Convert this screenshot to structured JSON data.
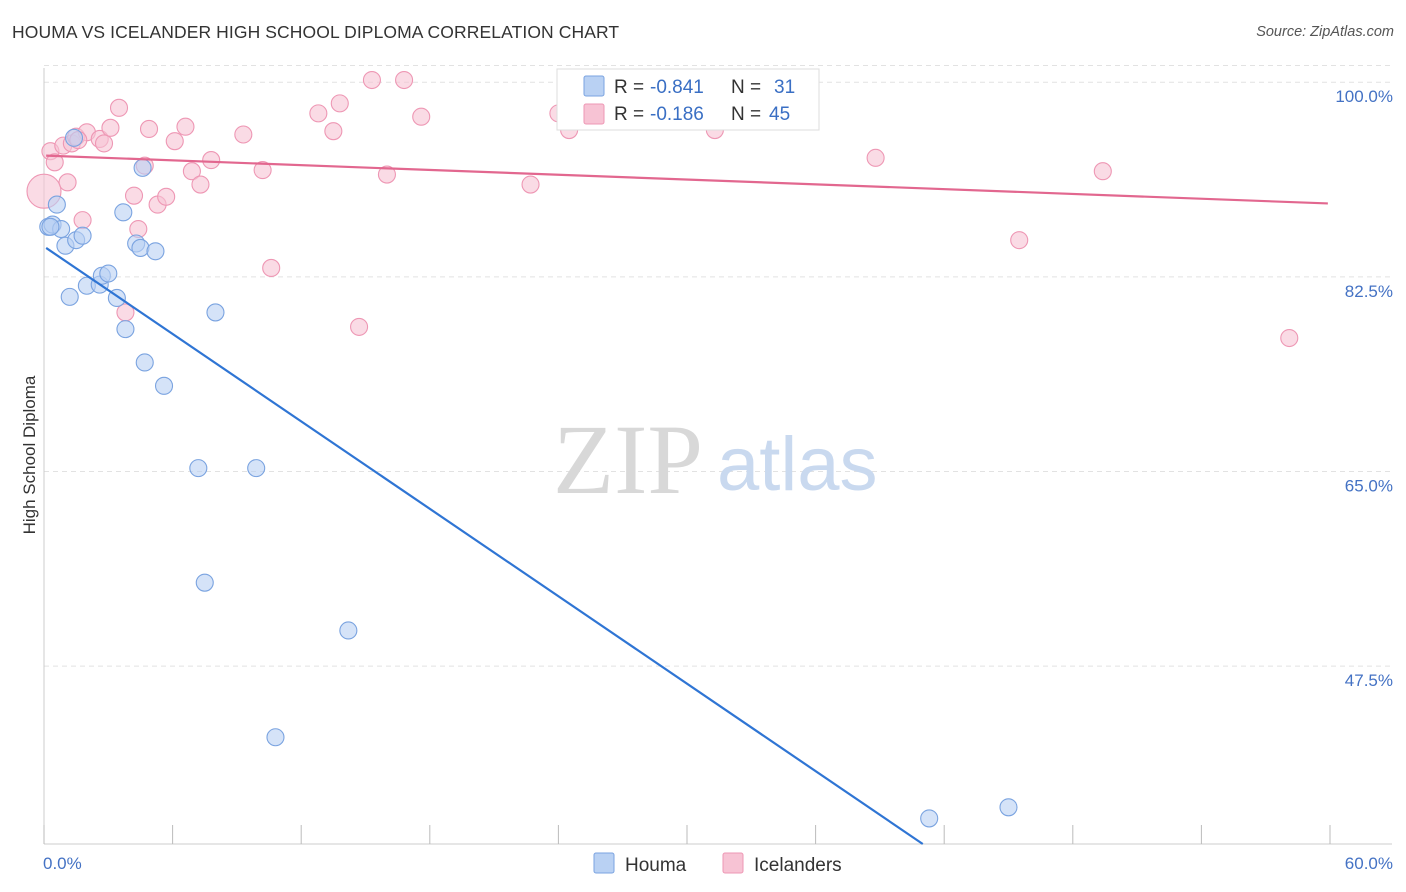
{
  "title": "HOUMA VS ICELANDER HIGH SCHOOL DIPLOMA CORRELATION CHART",
  "source": "Source: ZipAtlas.com",
  "watermark": {
    "zip": "ZIP",
    "atlas": "atlas"
  },
  "colors": {
    "houma_fill": "#b9d1f3",
    "houma_stroke": "#7aa3e0",
    "houma_line": "#2f75d4",
    "icel_fill": "#f7c3d4",
    "icel_stroke": "#ee97b4",
    "icel_line": "#e2678f",
    "tick_text": "#4472c4",
    "grid": "#e2e2e2"
  },
  "legend": {
    "r_label": "R =",
    "n_label": "N =",
    "rows": [
      {
        "series": "Houma",
        "r": "-0.841",
        "n": "31"
      },
      {
        "series": "Icelanders",
        "r": "-0.186",
        "n": "45"
      }
    ]
  },
  "chart_data": {
    "type": "scatter",
    "title": "HOUMA VS ICELANDER HIGH SCHOOL DIPLOMA CORRELATION CHART",
    "xlabel": "",
    "ylabel": "High School Diploma",
    "xlim": [
      0,
      60
    ],
    "ylim": [
      31.5,
      102
    ],
    "x_tick_labels": [
      "0.0%",
      "60.0%"
    ],
    "x_minor_ticks": [
      0,
      6,
      12,
      18,
      24,
      30,
      36,
      42,
      48,
      54,
      60
    ],
    "y_ticks": [
      100,
      82.5,
      65,
      47.5
    ],
    "y_tick_labels": [
      "100.0%",
      "82.5%",
      "65.0%",
      "47.5%"
    ],
    "grid": true,
    "legend_position": "top-center",
    "series": [
      {
        "name": "Houma",
        "points": [
          [
            0.2,
            87.0
          ],
          [
            0.4,
            87.2
          ],
          [
            0.6,
            89.0
          ],
          [
            0.8,
            86.8
          ],
          [
            1.0,
            85.3
          ],
          [
            1.2,
            80.7
          ],
          [
            1.4,
            95.0
          ],
          [
            1.5,
            85.8
          ],
          [
            1.8,
            86.2
          ],
          [
            2.0,
            81.7
          ],
          [
            2.6,
            81.8
          ],
          [
            2.7,
            82.6
          ],
          [
            3.0,
            82.8
          ],
          [
            3.4,
            80.6
          ],
          [
            3.7,
            88.3
          ],
          [
            3.8,
            77.8
          ],
          [
            4.3,
            85.5
          ],
          [
            4.5,
            85.1
          ],
          [
            4.6,
            92.3
          ],
          [
            4.7,
            74.8
          ],
          [
            5.2,
            84.8
          ],
          [
            5.6,
            72.7
          ],
          [
            7.2,
            65.3
          ],
          [
            7.5,
            55.0
          ],
          [
            8.0,
            79.3
          ],
          [
            9.9,
            65.3
          ],
          [
            10.8,
            41.1
          ],
          [
            14.2,
            50.7
          ],
          [
            41.3,
            33.8
          ],
          [
            45.0,
            34.8
          ],
          [
            0.3,
            87.0
          ]
        ],
        "trend_line": {
          "x": [
            0.1,
            41.0
          ],
          "y": [
            85.1,
            31.5
          ]
        },
        "r": -0.841,
        "n": 31
      },
      {
        "name": "Icelanders",
        "points": [
          [
            0.3,
            93.8
          ],
          [
            0.5,
            92.8
          ],
          [
            0.9,
            94.3
          ],
          [
            1.1,
            91.0
          ],
          [
            1.3,
            94.5
          ],
          [
            1.5,
            95.1
          ],
          [
            1.8,
            87.6
          ],
          [
            2.0,
            95.5
          ],
          [
            2.6,
            94.9
          ],
          [
            3.1,
            95.9
          ],
          [
            3.5,
            97.7
          ],
          [
            3.8,
            79.3
          ],
          [
            4.2,
            89.8
          ],
          [
            4.4,
            86.8
          ],
          [
            4.7,
            92.5
          ],
          [
            4.9,
            95.8
          ],
          [
            5.3,
            89.0
          ],
          [
            5.7,
            89.7
          ],
          [
            6.1,
            94.7
          ],
          [
            6.6,
            96.0
          ],
          [
            6.9,
            92.0
          ],
          [
            7.3,
            90.8
          ],
          [
            7.8,
            93.0
          ],
          [
            9.3,
            95.3
          ],
          [
            10.2,
            92.1
          ],
          [
            10.6,
            83.3
          ],
          [
            12.8,
            97.2
          ],
          [
            13.5,
            95.6
          ],
          [
            13.8,
            98.1
          ],
          [
            14.7,
            78.0
          ],
          [
            15.3,
            100.2
          ],
          [
            16.0,
            91.7
          ],
          [
            16.8,
            100.2
          ],
          [
            17.6,
            96.9
          ],
          [
            22.7,
            90.8
          ],
          [
            24.0,
            97.2
          ],
          [
            24.5,
            95.7
          ],
          [
            31.3,
            95.7
          ],
          [
            38.8,
            93.2
          ],
          [
            45.5,
            85.8
          ],
          [
            49.4,
            92.0
          ],
          [
            58.1,
            77.0
          ],
          [
            2.8,
            94.5
          ],
          [
            0.0,
            90.2
          ],
          [
            1.6,
            94.8
          ]
        ],
        "trend_line": {
          "x": [
            0.1,
            59.9
          ],
          "y": [
            93.4,
            89.1
          ]
        },
        "r": -0.186,
        "n": 45
      }
    ]
  },
  "bottom_legend": [
    "Houma",
    "Icelanders"
  ]
}
